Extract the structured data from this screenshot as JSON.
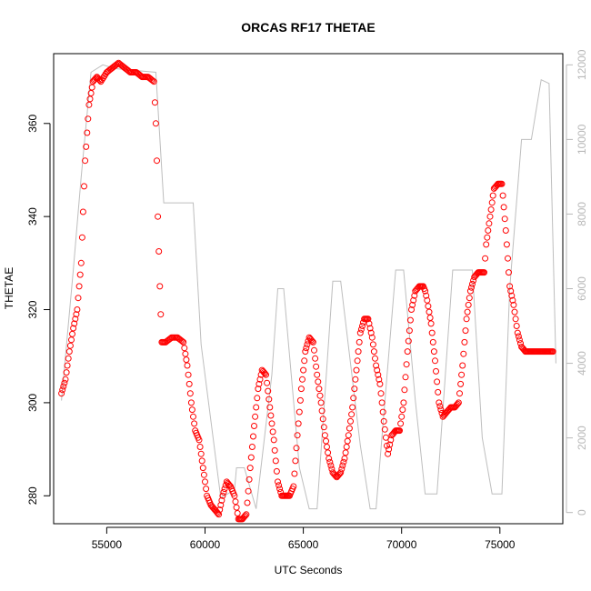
{
  "chart_data": {
    "type": "scatter",
    "title": "ORCAS RF17 THETAE",
    "xlabel": "UTC Seconds",
    "ylabel": "THETAE",
    "xlim": [
      52300,
      78200
    ],
    "ylim": [
      274,
      375
    ],
    "y2lim": [
      -300,
      12300
    ],
    "x_ticks": [
      55000,
      60000,
      65000,
      70000,
      75000
    ],
    "y_ticks": [
      280,
      300,
      320,
      340,
      360
    ],
    "y2_ticks": [
      0,
      2000,
      4000,
      6000,
      8000,
      10000,
      12000
    ],
    "colors": {
      "theta_points": "#ff0000",
      "altitude_line": "#bebebe"
    },
    "series": [
      {
        "kind": "points",
        "axis": "left",
        "x": [
          52700,
          52900,
          53100,
          53300,
          53500,
          53700,
          53900,
          54100,
          54300,
          54500,
          54700,
          55000,
          55300,
          55600,
          55900,
          56200,
          56500,
          56800,
          57100,
          57400,
          57500,
          57550,
          57600,
          57700,
          57800,
          57900,
          58000,
          58300,
          58600,
          58900,
          59100,
          59300,
          59500,
          59700,
          59900,
          60100,
          60300,
          60500,
          60700,
          60900,
          61100,
          61300,
          61500,
          61700,
          61900,
          62100,
          62300,
          62500,
          62700,
          62900,
          63100,
          63300,
          63500,
          63700,
          63900,
          64100,
          64300,
          64500,
          64700,
          64900,
          65100,
          65300,
          65500,
          65700,
          65900,
          66100,
          66300,
          66500,
          66700,
          66900,
          67100,
          67300,
          67500,
          67700,
          67900,
          68100,
          68300,
          68500,
          68700,
          68900,
          69100,
          69300,
          69500,
          69700,
          69900,
          70100,
          70300,
          70500,
          70700,
          70900,
          71100,
          71200,
          71300,
          71500,
          71700,
          71900,
          72100,
          72300,
          72500,
          72700,
          72900,
          73100,
          73300,
          73500,
          73700,
          73900,
          74100,
          74200,
          74300,
          74500,
          74700,
          74900,
          75100,
          75300,
          75500,
          75700,
          75900,
          76100,
          76300,
          76500,
          76700,
          76900,
          77100,
          77300,
          77500,
          77700
        ],
        "y": [
          302,
          305,
          311,
          316,
          320,
          330,
          352,
          364,
          369,
          370,
          369,
          371,
          372,
          373,
          372,
          371,
          371,
          370,
          370,
          369,
          360,
          352,
          340,
          325,
          313,
          313,
          313,
          314,
          314,
          313,
          308,
          300,
          294,
          292,
          286,
          280,
          278,
          277,
          276,
          280,
          283,
          282,
          280,
          275,
          275,
          276,
          286,
          295,
          303,
          307,
          306,
          299,
          292,
          283,
          280,
          280,
          280,
          282,
          293,
          303,
          311,
          314,
          313,
          306,
          300,
          293,
          288,
          285,
          284,
          285,
          288,
          293,
          299,
          307,
          315,
          318,
          318,
          314,
          308,
          304,
          296,
          289,
          293,
          294,
          294,
          300,
          311,
          320,
          324,
          325,
          325,
          324,
          322,
          317,
          309,
          300,
          297,
          298,
          299,
          299,
          300,
          308,
          318,
          324,
          327,
          328,
          328,
          328,
          334,
          340,
          346,
          347,
          347,
          337,
          325,
          321,
          315,
          312,
          311,
          311,
          311,
          311,
          311,
          311,
          311,
          311
        ],
        "name": ""
      },
      {
        "kind": "line",
        "axis": "right",
        "x": [
          52700,
          53300,
          53700,
          54200,
          54800,
          55400,
          57500,
          57900,
          59400,
          59800,
          60800,
          61500,
          61600,
          62000,
          62600,
          63400,
          63700,
          64000,
          64800,
          65300,
          65700,
          66500,
          66900,
          67900,
          68400,
          68700,
          69700,
          70100,
          70700,
          71200,
          71800,
          72600,
          73100,
          73600,
          74100,
          74600,
          75100,
          75500,
          75800,
          76100,
          76600,
          77100,
          77500,
          77850
        ],
        "y": [
          3000,
          6500,
          9000,
          11800,
          12000,
          11900,
          11800,
          8300,
          8300,
          4500,
          400,
          600,
          1200,
          1200,
          100,
          3700,
          6000,
          6000,
          1200,
          100,
          100,
          6200,
          6200,
          1800,
          100,
          100,
          6500,
          6500,
          3000,
          500,
          500,
          6500,
          6500,
          6500,
          2000,
          500,
          500,
          6000,
          8000,
          10000,
          10000,
          11600,
          11500,
          4000
        ],
        "name": ""
      }
    ]
  }
}
